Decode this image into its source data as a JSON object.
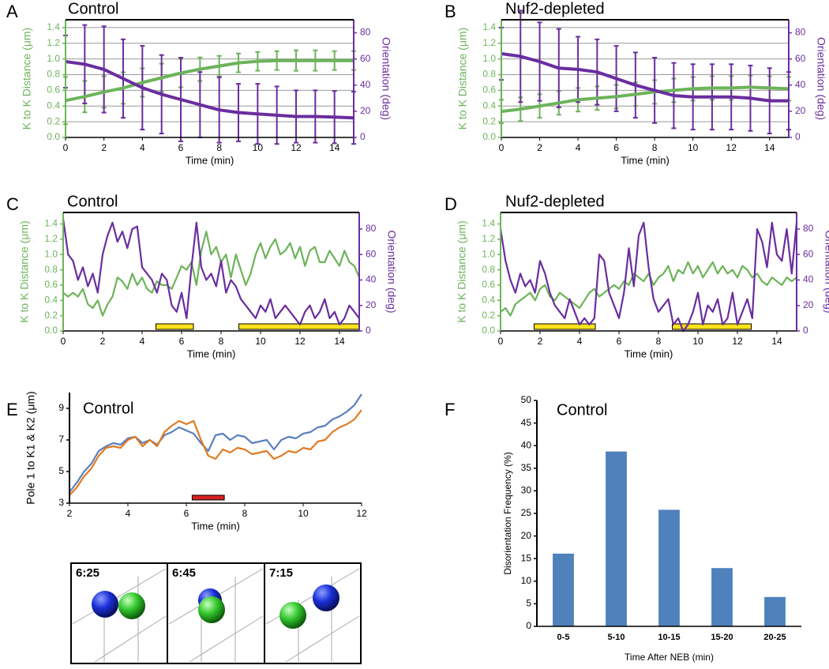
{
  "chart_data": [
    {
      "type": "line",
      "panel": "A",
      "title": "Control",
      "xlabel": "Time (min)",
      "ylabel": "K to K Distance (μm)",
      "y2label": "Orientation (deg)",
      "grid": true,
      "xlim": [
        0,
        15
      ],
      "xticks": [
        0,
        2,
        4,
        6,
        8,
        10,
        12,
        14
      ],
      "ylim": [
        0,
        1.5
      ],
      "yticks": [
        {
          "value": 0,
          "label": "0.0"
        },
        0.2,
        0.4,
        0.6,
        0.8,
        {
          "value": 1,
          "label": "1.0"
        },
        1.2,
        1.4
      ],
      "y2lim": [
        0,
        90
      ],
      "y2ticks": [
        0,
        20,
        40,
        60,
        80
      ],
      "x": [
        0,
        1,
        2,
        3,
        4,
        5,
        6,
        7,
        8,
        9,
        10,
        11,
        12,
        13,
        14,
        15
      ],
      "series": [
        {
          "color": "#6db35a",
          "values": [
            0.47,
            0.52,
            0.58,
            0.63,
            0.7,
            0.76,
            0.82,
            0.87,
            0.91,
            0.95,
            0.97,
            0.98,
            0.98,
            0.98,
            0.98,
            0.98
          ],
          "errors": [
            0.3,
            0.2,
            0.2,
            0.2,
            0.18,
            0.18,
            0.18,
            0.15,
            0.13,
            0.12,
            0.12,
            0.12,
            0.13,
            0.13,
            0.12,
            0.12
          ]
        },
        {
          "color": "#6a2d9f",
          "axis": "y2",
          "values": [
            58,
            56,
            52,
            45,
            38,
            33,
            29,
            25,
            21,
            19,
            18,
            17,
            16,
            16,
            15.5,
            15
          ],
          "errors": [
            20,
            30,
            33,
            30,
            32,
            30,
            32,
            25,
            25,
            22,
            23,
            22,
            20,
            20,
            20,
            20
          ]
        }
      ]
    },
    {
      "type": "line",
      "panel": "B",
      "title": "Nuf2-depleted",
      "xlabel": "Time (min)",
      "ylabel": "K to K Distance (μm)",
      "y2label": "Orientation (deg)",
      "grid": true,
      "xlim": [
        0,
        15
      ],
      "xticks": [
        0,
        2,
        4,
        6,
        8,
        10,
        12,
        14
      ],
      "ylim": [
        0,
        1.5
      ],
      "yticks": [
        {
          "value": 0,
          "label": "0.0"
        },
        0.2,
        0.4,
        0.6,
        0.8,
        {
          "value": 1,
          "label": "1.0"
        },
        1.2,
        1.4
      ],
      "y2lim": [
        0,
        90
      ],
      "y2ticks": [
        0,
        20,
        40,
        60,
        80
      ],
      "x": [
        0,
        1,
        2,
        3,
        4,
        5,
        6,
        7,
        8,
        9,
        10,
        11,
        12,
        13,
        14,
        15
      ],
      "series": [
        {
          "color": "#6db35a",
          "values": [
            0.33,
            0.36,
            0.4,
            0.44,
            0.48,
            0.5,
            0.52,
            0.55,
            0.58,
            0.6,
            0.62,
            0.63,
            0.63,
            0.64,
            0.63,
            0.62
          ],
          "errors": [
            0.15,
            0.15,
            0.15,
            0.15,
            0.15,
            0.15,
            0.15,
            0.15,
            0.15,
            0.15,
            0.15,
            0.15,
            0.15,
            0.15,
            0.15,
            0.15
          ]
        },
        {
          "color": "#6a2d9f",
          "axis": "y2",
          "values": [
            64,
            62,
            58,
            53,
            52,
            50,
            45,
            40,
            36,
            32,
            31,
            31,
            31,
            30,
            28,
            28
          ],
          "errors": [
            20,
            35,
            30,
            30,
            25,
            25,
            25,
            25,
            25,
            25,
            25,
            25,
            25,
            25,
            25,
            22
          ]
        }
      ]
    },
    {
      "type": "line",
      "panel": "C",
      "title": "Control",
      "xlabel": "Time (min)",
      "ylabel": "K to K Distance (μm)",
      "y2label": "Orientation (deg)",
      "grid": false,
      "xlim": [
        0,
        15
      ],
      "xticks": [
        0,
        2,
        4,
        6,
        8,
        10,
        12,
        14
      ],
      "ylim": [
        0,
        1.55
      ],
      "yticks": [
        {
          "value": 0,
          "label": "0.0"
        },
        0.2,
        0.4,
        0.6,
        0.8,
        {
          "value": 1,
          "label": "1.0"
        },
        1.2,
        1.4
      ],
      "y2lim": [
        0,
        93
      ],
      "y2ticks": [
        0,
        20,
        40,
        60,
        80
      ],
      "highlights": [
        [
          4.7,
          6.6
        ],
        [
          8.9,
          15
        ]
      ],
      "highlight_color": "#ffe21a",
      "x": [
        0,
        0.25,
        0.5,
        0.75,
        1,
        1.25,
        1.5,
        1.75,
        2,
        2.25,
        2.5,
        2.75,
        3,
        3.25,
        3.5,
        3.75,
        4,
        4.25,
        4.5,
        4.75,
        5,
        5.25,
        5.5,
        5.75,
        6,
        6.25,
        6.5,
        6.75,
        7,
        7.25,
        7.5,
        7.75,
        8,
        8.25,
        8.5,
        8.75,
        9,
        9.25,
        9.5,
        9.75,
        10,
        10.25,
        10.5,
        10.75,
        11,
        11.25,
        11.5,
        11.75,
        12,
        12.25,
        12.5,
        12.75,
        13,
        13.25,
        13.5,
        13.75,
        14,
        14.25,
        14.5,
        14.75,
        15
      ],
      "series": [
        {
          "color": "#6db35a",
          "values": [
            0.5,
            0.45,
            0.5,
            0.45,
            0.55,
            0.35,
            0.3,
            0.4,
            0.2,
            0.35,
            0.45,
            0.7,
            0.65,
            0.55,
            0.75,
            0.6,
            0.7,
            0.55,
            0.5,
            0.65,
            0.6,
            0.6,
            0.55,
            0.7,
            0.85,
            0.8,
            0.9,
            0.6,
            1.05,
            1.3,
            1.0,
            1.1,
            0.9,
            1.0,
            0.7,
            1.0,
            0.8,
            0.6,
            0.75,
            1.0,
            1.15,
            0.95,
            1.1,
            1.2,
            1.0,
            1.05,
            1.15,
            0.95,
            1.1,
            0.85,
            1.05,
            1.1,
            0.9,
            0.9,
            1.05,
            0.95,
            0.85,
            1.05,
            0.9,
            0.85,
            0.7
          ]
        },
        {
          "color": "#6a2d9f",
          "axis": "y2",
          "values": [
            88,
            60,
            55,
            40,
            50,
            35,
            45,
            30,
            60,
            75,
            85,
            70,
            78,
            65,
            80,
            82,
            50,
            45,
            40,
            30,
            45,
            40,
            20,
            15,
            30,
            10,
            50,
            85,
            50,
            40,
            45,
            35,
            55,
            30,
            40,
            35,
            25,
            20,
            15,
            10,
            20,
            15,
            25,
            10,
            15,
            20,
            15,
            10,
            5,
            15,
            20,
            10,
            15,
            25,
            10,
            15,
            5,
            10,
            20,
            15,
            10
          ]
        }
      ]
    },
    {
      "type": "line",
      "panel": "D",
      "title": "Nuf2-depleted",
      "xlabel": "Time (min)",
      "ylabel": "K to K Distance (μm)",
      "y2label": "Orientation (deg)",
      "grid": false,
      "xlim": [
        0,
        15
      ],
      "xticks": [
        0,
        2,
        4,
        6,
        8,
        10,
        12,
        14
      ],
      "ylim": [
        0,
        1.55
      ],
      "yticks": [
        {
          "value": 0,
          "label": "0.0"
        },
        0.2,
        0.4,
        0.6,
        0.8,
        {
          "value": 1,
          "label": "1.0"
        },
        1.2,
        1.4
      ],
      "y2lim": [
        0,
        93
      ],
      "y2ticks": [
        0,
        20,
        40,
        60,
        80
      ],
      "highlights": [
        [
          1.7,
          4.8
        ],
        [
          8.7,
          12.7
        ]
      ],
      "highlight_color": "#ffe21a",
      "x": [
        0,
        0.25,
        0.5,
        0.75,
        1,
        1.25,
        1.5,
        1.75,
        2,
        2.25,
        2.5,
        2.75,
        3,
        3.25,
        3.5,
        3.75,
        4,
        4.25,
        4.5,
        4.75,
        5,
        5.25,
        5.5,
        5.75,
        6,
        6.25,
        6.5,
        6.75,
        7,
        7.25,
        7.5,
        7.75,
        8,
        8.25,
        8.5,
        8.75,
        9,
        9.25,
        9.5,
        9.75,
        10,
        10.25,
        10.5,
        10.75,
        11,
        11.25,
        11.5,
        11.75,
        12,
        12.25,
        12.5,
        12.75,
        13,
        13.25,
        13.5,
        13.75,
        14,
        14.25,
        14.5,
        14.75,
        15
      ],
      "series": [
        {
          "color": "#6db35a",
          "values": [
            0.25,
            0.3,
            0.2,
            0.35,
            0.4,
            0.45,
            0.5,
            0.4,
            0.55,
            0.6,
            0.45,
            0.4,
            0.5,
            0.45,
            0.4,
            0.35,
            0.3,
            0.4,
            0.5,
            0.55,
            0.45,
            0.5,
            0.55,
            0.6,
            0.55,
            0.65,
            0.6,
            0.75,
            0.7,
            0.65,
            0.75,
            0.6,
            0.7,
            0.75,
            0.85,
            0.65,
            0.8,
            0.75,
            0.9,
            0.75,
            0.85,
            0.7,
            0.8,
            0.9,
            0.75,
            0.85,
            0.75,
            0.8,
            0.7,
            0.85,
            0.8,
            0.7,
            0.75,
            0.65,
            0.6,
            0.7,
            0.65,
            0.6,
            0.7,
            0.65,
            0.7
          ]
        },
        {
          "color": "#6a2d9f",
          "axis": "y2",
          "values": [
            80,
            55,
            40,
            30,
            45,
            35,
            40,
            30,
            55,
            45,
            30,
            20,
            15,
            10,
            25,
            15,
            5,
            10,
            5,
            10,
            60,
            55,
            30,
            20,
            10,
            30,
            65,
            35,
            75,
            85,
            50,
            25,
            15,
            20,
            25,
            5,
            10,
            0,
            5,
            15,
            30,
            5,
            20,
            15,
            25,
            5,
            10,
            30,
            5,
            15,
            25,
            10,
            80,
            70,
            50,
            85,
            60,
            55,
            80,
            45,
            85
          ]
        }
      ]
    },
    {
      "type": "line",
      "panel": "E",
      "title": "Control",
      "xlabel": "Time (min)",
      "ylabel": "Pole 1 to K1 & K2 (μm)",
      "grid": false,
      "xlim": [
        2,
        12
      ],
      "xticks": [
        2,
        4,
        6,
        8,
        10,
        12
      ],
      "ylim": [
        3,
        10
      ],
      "yticks": [
        3,
        5,
        7,
        9
      ],
      "highlights": [
        [
          6.2,
          7.3
        ]
      ],
      "highlight_color": "#d42020",
      "x": [
        2,
        2.25,
        2.5,
        2.75,
        3,
        3.25,
        3.5,
        3.75,
        4,
        4.25,
        4.5,
        4.75,
        5,
        5.25,
        5.5,
        5.75,
        6,
        6.25,
        6.5,
        6.75,
        7,
        7.25,
        7.5,
        7.75,
        8,
        8.25,
        8.5,
        8.75,
        9,
        9.25,
        9.5,
        9.75,
        10,
        10.25,
        10.5,
        10.75,
        11,
        11.25,
        11.5,
        11.75,
        12
      ],
      "series": [
        {
          "color": "#5b7fbf",
          "values": [
            3.7,
            4.3,
            5.0,
            5.5,
            6.3,
            6.6,
            6.8,
            6.7,
            7.1,
            7.2,
            6.8,
            7.0,
            6.7,
            7.3,
            7.5,
            7.8,
            7.6,
            7.4,
            6.8,
            6.3,
            7.3,
            7.4,
            7.0,
            7.3,
            7.2,
            6.8,
            6.9,
            7.0,
            6.4,
            7.0,
            7.2,
            7.1,
            7.4,
            7.5,
            7.8,
            7.9,
            8.3,
            8.5,
            8.8,
            9.2,
            9.9
          ]
        },
        {
          "color": "#e07b22",
          "values": [
            3.5,
            4.0,
            4.7,
            5.2,
            6.0,
            6.5,
            6.6,
            6.5,
            7.0,
            7.2,
            6.6,
            7.0,
            6.6,
            7.5,
            7.9,
            8.2,
            8.0,
            8.2,
            7.0,
            6.0,
            5.8,
            6.4,
            6.2,
            6.5,
            6.4,
            6.1,
            6.2,
            6.3,
            5.8,
            6.0,
            6.3,
            6.2,
            6.5,
            6.4,
            6.9,
            7.0,
            7.5,
            7.8,
            8.0,
            8.3,
            8.9
          ]
        }
      ]
    },
    {
      "type": "bar",
      "panel": "F",
      "title": "Control",
      "xlabel": "Time After NEB (min)",
      "ylabel": "Disorientation Frequency (%)",
      "color": "#4f81bd",
      "ylim": [
        0,
        50
      ],
      "yticks": [
        0,
        5,
        10,
        15,
        20,
        25,
        30,
        35,
        40,
        45,
        50
      ],
      "categories": [
        "0-5",
        "5-10",
        "10-15",
        "15-20",
        "20-25"
      ],
      "values": [
        16.1,
        38.7,
        25.8,
        12.9,
        6.5
      ]
    }
  ],
  "frames": {
    "labels": [
      "6:25",
      "6:45",
      "7:15"
    ]
  }
}
